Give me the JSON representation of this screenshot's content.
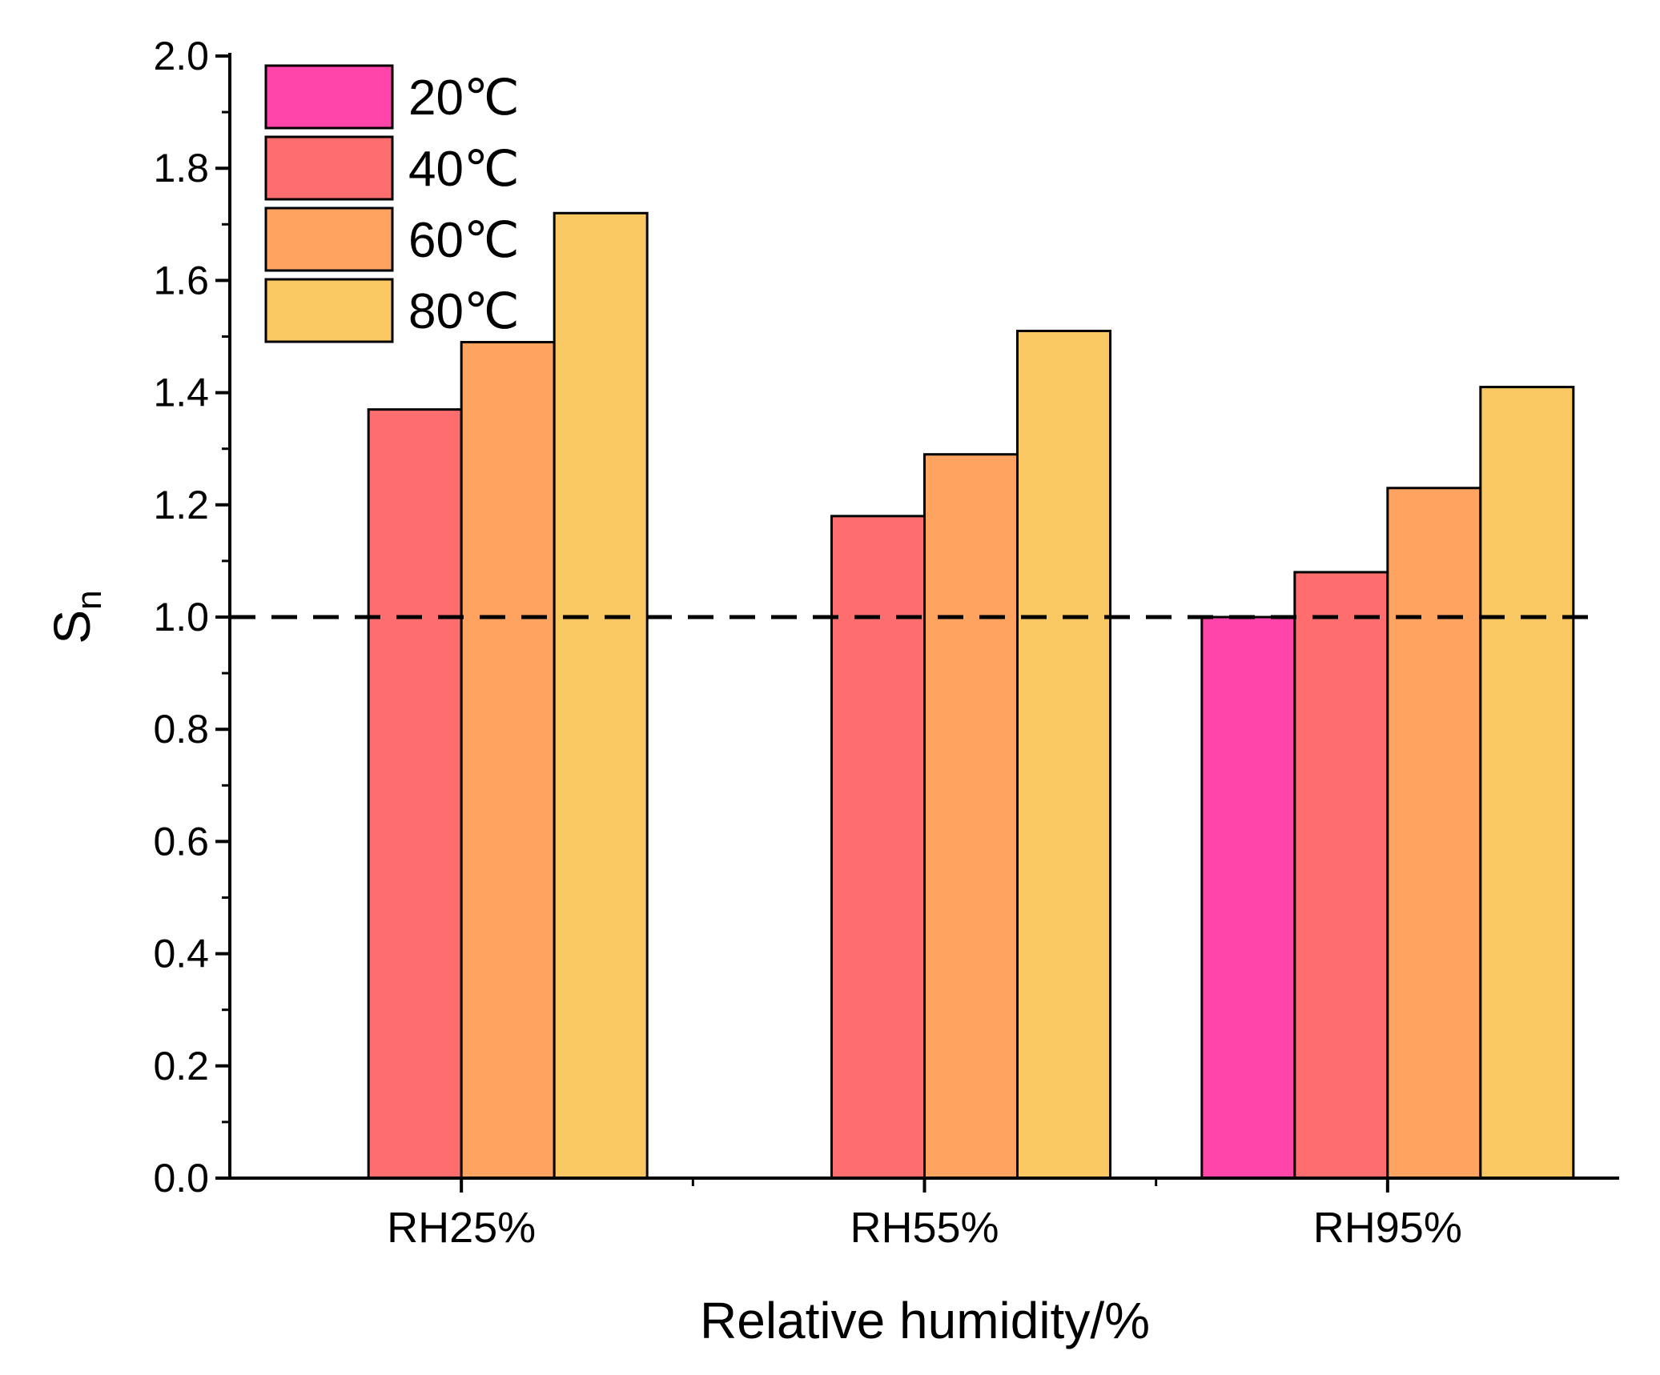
{
  "chart_data": {
    "type": "bar",
    "title": "",
    "xlabel": "Relative humidity/%",
    "ylabel": "S",
    "ylabel_subscript": "n",
    "ylim": [
      0,
      2.0
    ],
    "yticks": [
      "0.0",
      "0.2",
      "0.4",
      "0.6",
      "0.8",
      "1.0",
      "1.2",
      "1.4",
      "1.6",
      "1.8",
      "2.0"
    ],
    "categories": [
      "RH25%",
      "RH55%",
      "RH95%"
    ],
    "series": [
      {
        "name": "20℃",
        "color": "#FF44AA",
        "values": [
          null,
          null,
          1.0
        ]
      },
      {
        "name": "40℃",
        "color": "#FF6E6E",
        "values": [
          1.37,
          1.18,
          1.08
        ]
      },
      {
        "name": "60℃",
        "color": "#FFA460",
        "values": [
          1.49,
          1.29,
          1.23
        ]
      },
      {
        "name": "80℃",
        "color": "#FAC862",
        "values": [
          1.72,
          1.51,
          1.41
        ]
      }
    ],
    "reference_line": {
      "y": 1.0,
      "style": "dashed"
    },
    "legend_position": "top-left",
    "grid": false
  }
}
